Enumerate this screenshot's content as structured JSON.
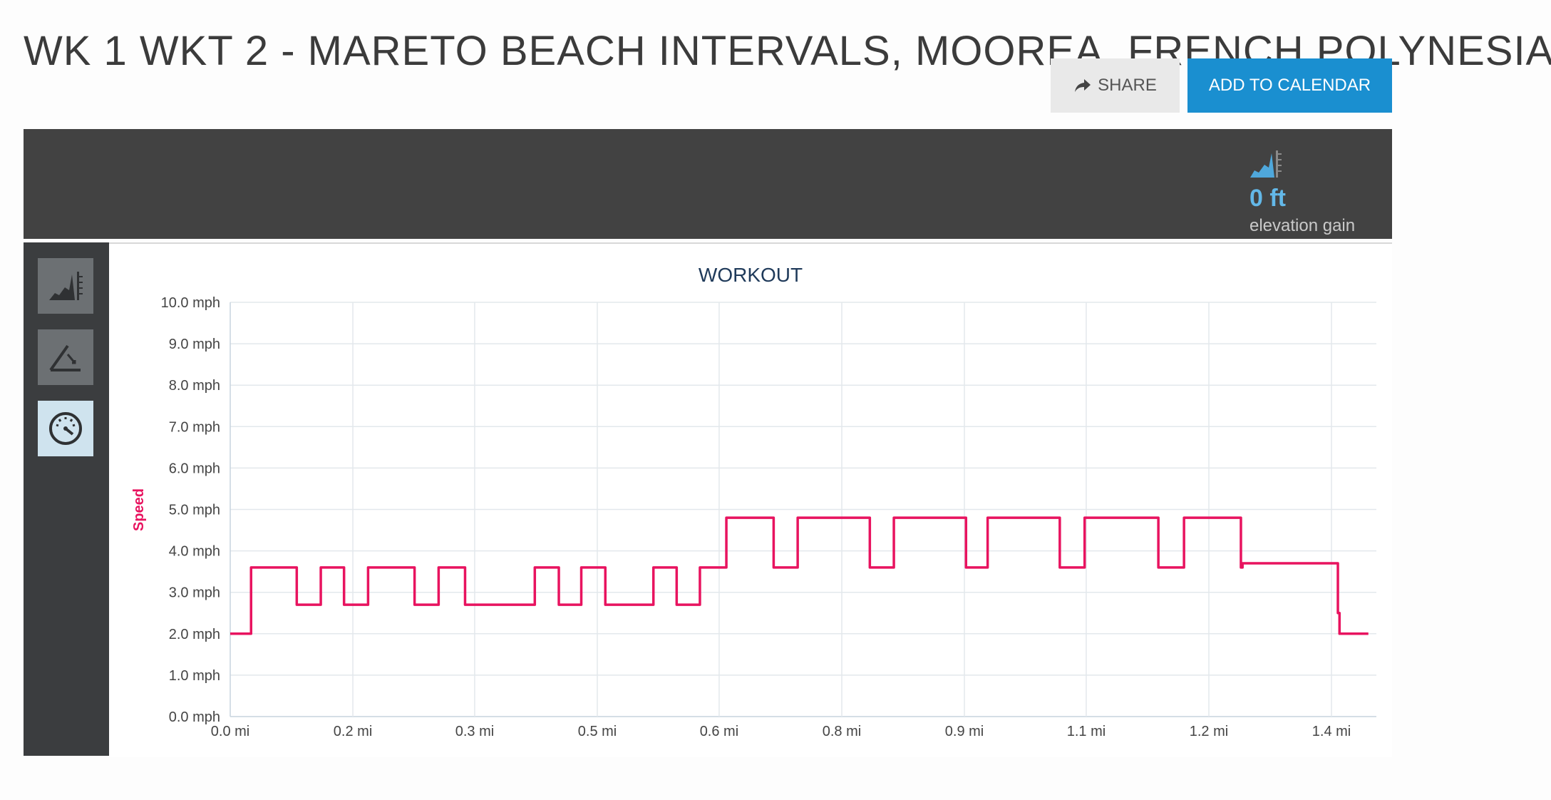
{
  "page": {
    "title": "WK 1 WKT 2 - MARETO BEACH INTERVALS, MOOREA, FRENCH POLYNESIA"
  },
  "actions": {
    "share_label": "SHARE",
    "calendar_label": "ADD TO CALENDAR"
  },
  "stats": {
    "elevation_value": "0 ft",
    "elevation_label": "elevation gain"
  },
  "toolbar": {
    "items": [
      {
        "name": "elevation-view",
        "icon": "elevation-icon",
        "active": false
      },
      {
        "name": "grade-view",
        "icon": "grade-icon",
        "active": false
      },
      {
        "name": "speed-view",
        "icon": "speedometer-icon",
        "active": true
      }
    ]
  },
  "colors": {
    "accent": "#1a8fd0",
    "series": "#e8135f",
    "title": "#1f3a5a",
    "bar": "#424242",
    "elevation": "#63b8e8"
  },
  "chart_data": {
    "type": "line",
    "title": "WORKOUT",
    "ylabel": "Speed",
    "xlabel": "",
    "ylim": [
      0,
      10
    ],
    "xlim": [
      0,
      1.43
    ],
    "grid": true,
    "y_ticks": [
      0,
      1,
      2,
      3,
      4,
      5,
      6,
      7,
      8,
      9,
      10
    ],
    "y_tick_labels": [
      "0.0 mph",
      "1.0 mph",
      "2.0 mph",
      "3.0 mph",
      "4.0 mph",
      "5.0 mph",
      "6.0 mph",
      "7.0 mph",
      "8.0 mph",
      "9.0 mph",
      "10.0 mph"
    ],
    "x_ticks": [
      0,
      0.153,
      0.305,
      0.458,
      0.61,
      0.763,
      0.916,
      1.068,
      1.221,
      1.374
    ],
    "x_tick_labels": [
      "0.0 mi",
      "0.2 mi",
      "0.3 mi",
      "0.5 mi",
      "0.6 mi",
      "0.8 mi",
      "0.9 mi",
      "1.1 mi",
      "1.2 mi",
      "1.4 mi"
    ],
    "series": [
      {
        "name": "Speed",
        "step": true,
        "x": [
          0,
          0.026,
          0.083,
          0.113,
          0.142,
          0.172,
          0.23,
          0.26,
          0.293,
          0.38,
          0.41,
          0.438,
          0.468,
          0.528,
          0.557,
          0.586,
          0.619,
          0.678,
          0.708,
          0.798,
          0.828,
          0.918,
          0.945,
          1.035,
          1.066,
          1.158,
          1.19,
          1.261,
          1.263,
          1.382,
          1.384,
          1.391
        ],
        "y": [
          2.0,
          3.6,
          2.7,
          3.6,
          2.7,
          3.6,
          2.7,
          3.6,
          2.7,
          3.6,
          2.7,
          3.6,
          2.7,
          3.6,
          2.7,
          3.6,
          4.8,
          3.6,
          4.8,
          3.6,
          4.8,
          3.6,
          4.8,
          3.6,
          4.8,
          3.6,
          4.8,
          3.6,
          3.7,
          2.5,
          2.0,
          2.0
        ],
        "end_x": 1.42
      }
    ]
  }
}
